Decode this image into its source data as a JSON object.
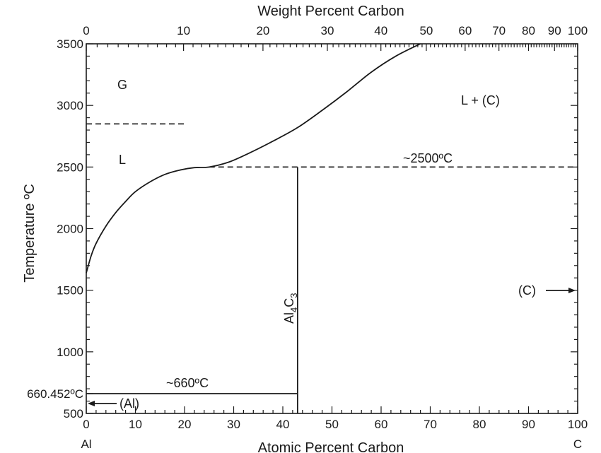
{
  "chart_data": {
    "type": "line",
    "top_axis": {
      "title": "Weight Percent Carbon",
      "ticks": [
        {
          "label": "0",
          "at_atomic": 0
        },
        {
          "label": "10",
          "at_atomic": 19.8
        },
        {
          "label": "20",
          "at_atomic": 35.96
        },
        {
          "label": "30",
          "at_atomic": 49.06
        },
        {
          "label": "40",
          "at_atomic": 59.96
        },
        {
          "label": "50",
          "at_atomic": 69.2
        },
        {
          "label": "60",
          "at_atomic": 77.1
        },
        {
          "label": "70",
          "at_atomic": 83.98
        },
        {
          "label": "80",
          "at_atomic": 90.0
        },
        {
          "label": "90",
          "at_atomic": 95.29
        },
        {
          "label": "100",
          "at_atomic": 100
        }
      ]
    },
    "x_axis": {
      "title": "Atomic Percent Carbon",
      "range": [
        0,
        100
      ],
      "ticks": [
        "0",
        "10",
        "20",
        "30",
        "40",
        "50",
        "60",
        "70",
        "80",
        "90",
        "100"
      ],
      "left_end_label": "Al",
      "right_end_label": "C"
    },
    "y_axis": {
      "title": "Temperature   ºC",
      "range": [
        500,
        3500
      ],
      "ticks": [
        "500",
        "1000",
        "1500",
        "2000",
        "2500",
        "3000",
        "3500"
      ],
      "extra_tick_label": "660.452ºC",
      "extra_tick_value": 660.452
    },
    "liquidus_curve": [
      {
        "x": 0,
        "y": 1640
      },
      {
        "x": 1,
        "y": 1780
      },
      {
        "x": 2,
        "y": 1880
      },
      {
        "x": 4,
        "y": 2020
      },
      {
        "x": 6,
        "y": 2130
      },
      {
        "x": 8,
        "y": 2220
      },
      {
        "x": 10,
        "y": 2300
      },
      {
        "x": 13,
        "y": 2380
      },
      {
        "x": 16,
        "y": 2440
      },
      {
        "x": 19,
        "y": 2475
      },
      {
        "x": 22,
        "y": 2495
      },
      {
        "x": 25,
        "y": 2500
      },
      {
        "x": 29,
        "y": 2540
      },
      {
        "x": 33,
        "y": 2610
      },
      {
        "x": 38,
        "y": 2710
      },
      {
        "x": 43,
        "y": 2820
      },
      {
        "x": 48,
        "y": 2960
      },
      {
        "x": 53,
        "y": 3110
      },
      {
        "x": 58,
        "y": 3270
      },
      {
        "x": 63,
        "y": 3400
      },
      {
        "x": 68,
        "y": 3500
      }
    ],
    "al4c3_line": {
      "x": 43,
      "y_from": 500,
      "y_to": 2500
    },
    "eutectic_line": {
      "x_from": 0,
      "x_to": 43,
      "y": 660.452
    },
    "peritectic_line": {
      "x_from": 25,
      "x_to": 100,
      "y": 2500
    },
    "boiling_line": {
      "x_from": 0,
      "x_to": 20,
      "y": 2850
    },
    "annotations": {
      "gas": "G",
      "liquid": "L",
      "liquid_carbon": "L + (C)",
      "peritectic_temp": "~2500ºC",
      "eutectic_temp": "~660ºC",
      "compound_base": "Al",
      "compound_sub1": "4",
      "compound_c": "C",
      "compound_sub2": "3",
      "al_phase": "(Al)",
      "carbon_phase": "(C)"
    },
    "grid": false,
    "legend": "none"
  }
}
